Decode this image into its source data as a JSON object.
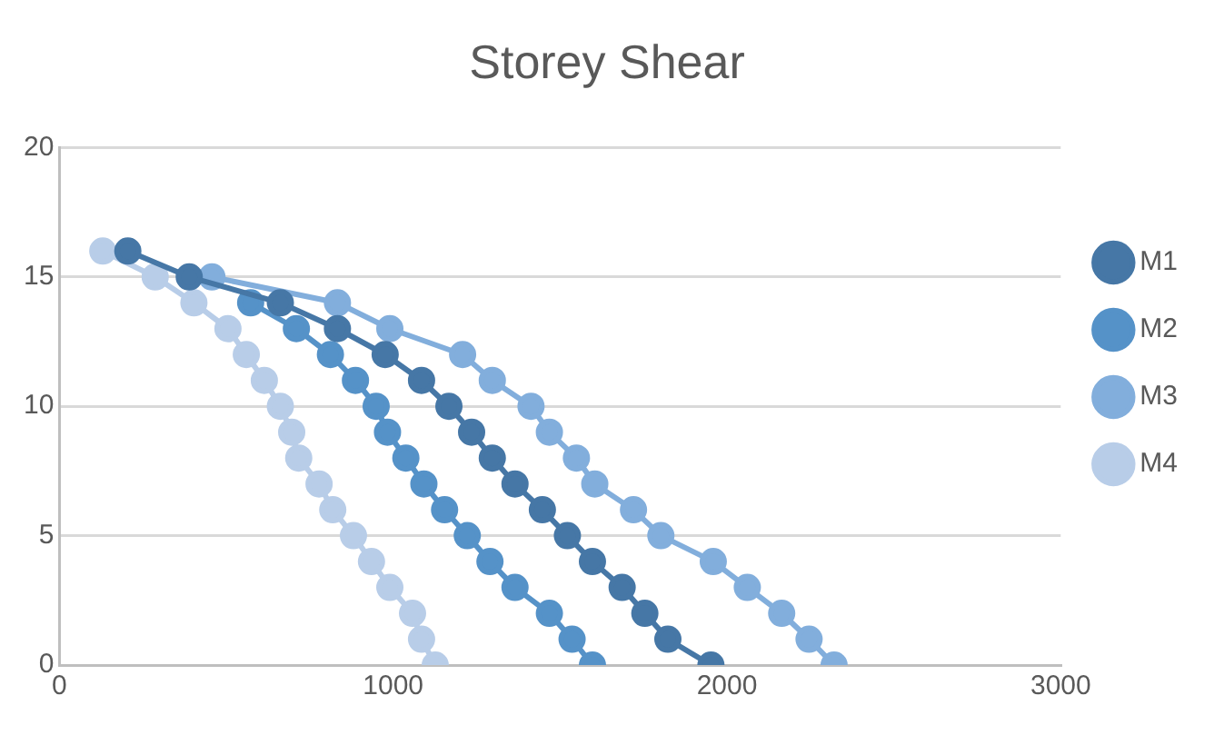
{
  "chart_data": {
    "type": "line",
    "title": "Storey Shear",
    "xlim": [
      0,
      3000
    ],
    "xticks": [
      0,
      1000,
      2000,
      3000
    ],
    "ylim": [
      0,
      20
    ],
    "yticks": [
      0,
      5,
      10,
      15,
      20
    ],
    "grid": "y",
    "legend": "right",
    "marker": "circle",
    "line_style": "solid",
    "series": [
      {
        "name": "M1",
        "color": "#4677a6",
        "x": [
          1952,
          1823,
          1754,
          1686,
          1597,
          1522,
          1447,
          1365,
          1297,
          1235,
          1167,
          1085,
          976,
          833,
          662,
          389,
          205
        ],
        "values": [
          0,
          1,
          2,
          3,
          4,
          5,
          6,
          7,
          8,
          9,
          10,
          11,
          12,
          13,
          14,
          15,
          16
        ]
      },
      {
        "name": "M2",
        "color": "#5592c8",
        "x": [
          1597,
          1536,
          1468,
          1365,
          1290,
          1222,
          1154,
          1092,
          1038,
          983,
          949,
          887,
          812,
          710,
          573,
          null,
          null
        ],
        "values": [
          0,
          1,
          2,
          3,
          4,
          5,
          6,
          7,
          8,
          9,
          10,
          11,
          12,
          13,
          14,
          null,
          null
        ]
      },
      {
        "name": "M3",
        "color": "#82aedc",
        "x": [
          2321,
          2246,
          2164,
          2061,
          1959,
          1802,
          1720,
          1604,
          1549,
          1468,
          1413,
          1297,
          1208,
          990,
          833,
          457,
          null
        ],
        "values": [
          0,
          1,
          2,
          3,
          4,
          5,
          6,
          7,
          8,
          9,
          10,
          11,
          12,
          13,
          14,
          15,
          null
        ]
      },
      {
        "name": "M4",
        "color": "#b8cde8",
        "x": [
          1126,
          1085,
          1058,
          990,
          935,
          881,
          819,
          778,
          717,
          696,
          662,
          614,
          560,
          505,
          403,
          287,
          130
        ],
        "values": [
          0,
          1,
          2,
          3,
          4,
          5,
          6,
          7,
          8,
          9,
          10,
          11,
          12,
          13,
          14,
          15,
          16
        ]
      }
    ]
  }
}
